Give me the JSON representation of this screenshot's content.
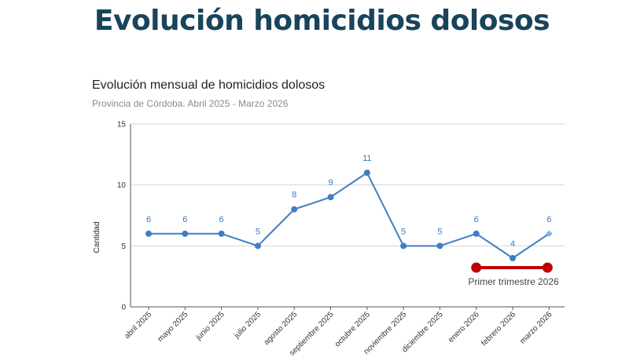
{
  "headline": "Evolución homicidios dolosos",
  "chart_data": {
    "type": "line",
    "title": "Evolución mensual de homicidios dolosos",
    "subtitle": "Provincia de Córdoba. Abril  2025 - Marzo 2026",
    "ylabel": "Cantidad",
    "xlabel": "",
    "ylim": [
      0,
      15
    ],
    "yticks": [
      0,
      5,
      10,
      15
    ],
    "grid": true,
    "categories": [
      "abril 2025",
      "mayo 2025",
      "junio 2025",
      "julio 2025",
      "agosto 2025",
      "septiembre 2025",
      "octubre 2025",
      "noviembre 2025",
      "diciembre 2025",
      "enero 2026",
      "febrero 2026",
      "marzo 2026"
    ],
    "series": [
      {
        "values": [
          6,
          6,
          6,
          5,
          8,
          9,
          11,
          5,
          5,
          6,
          4,
          6
        ]
      }
    ],
    "data_labels": [
      "6",
      "6",
      "6",
      "5",
      "8",
      "9",
      "11",
      "5",
      "5",
      "6",
      "4",
      "6"
    ],
    "annotation": {
      "text": "Primer trimestre 2026",
      "from_category": "enero 2026",
      "to_category": "marzo 2026",
      "color": "#c00000"
    },
    "colors": {
      "line": "#3f7ec4",
      "last_point": "#7fb6ea",
      "labels": "#3a78c2"
    }
  }
}
